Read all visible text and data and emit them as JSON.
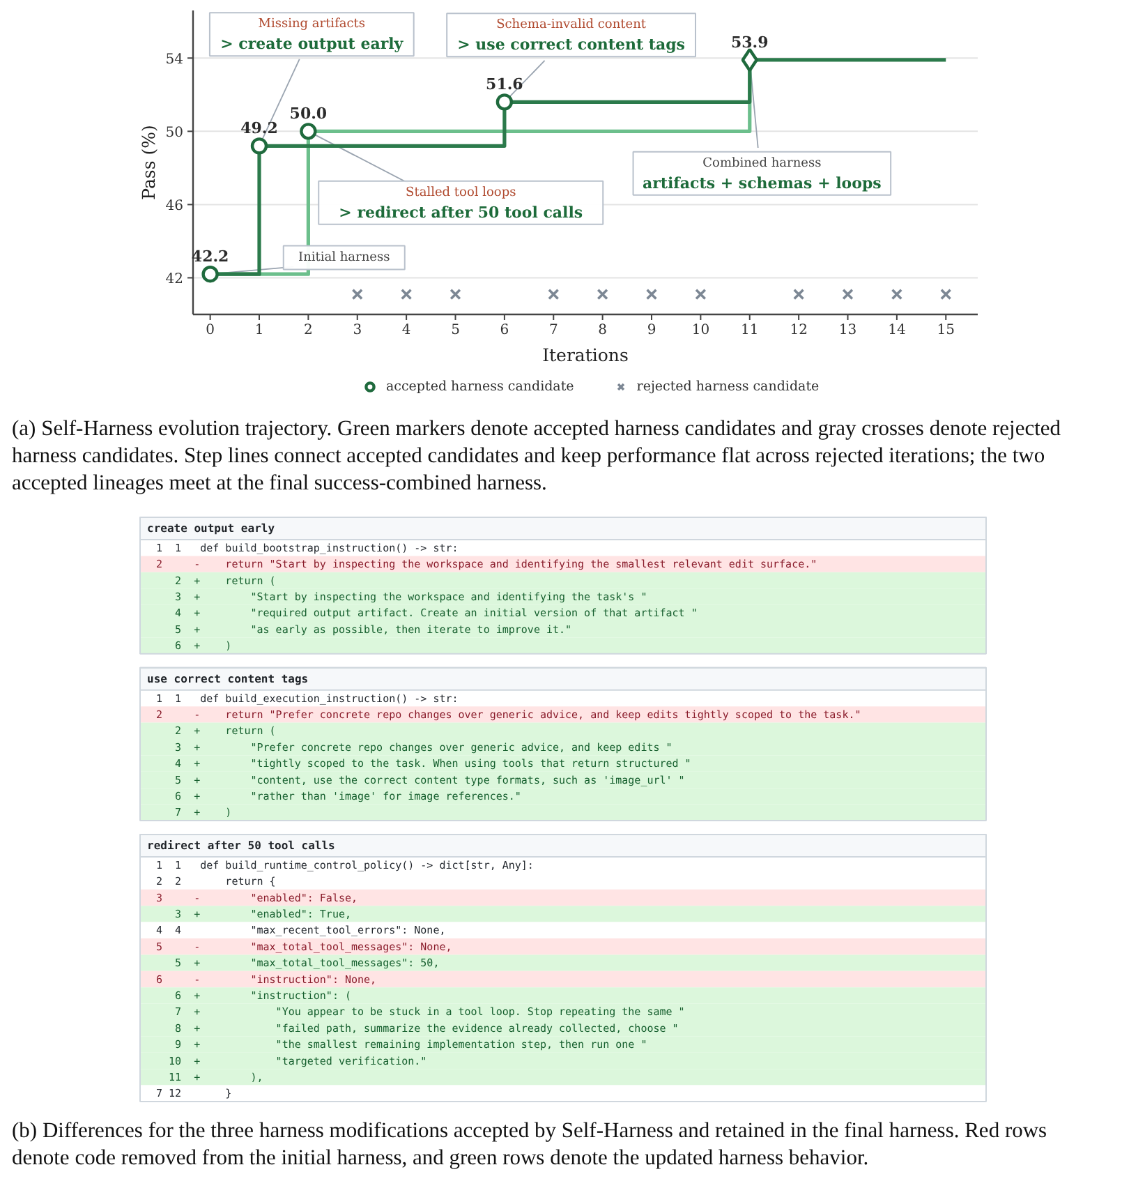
{
  "chart_data": [
    {
      "type": "step",
      "xlabel": "Iterations",
      "ylabel": "Pass (%)",
      "xlim": [
        -0.35,
        15.65
      ],
      "ylim": [
        40,
        56.6
      ],
      "xticks": [
        0,
        1,
        2,
        3,
        4,
        5,
        6,
        7,
        8,
        9,
        10,
        11,
        12,
        13,
        14,
        15
      ],
      "yticks": [
        42,
        46,
        50,
        54
      ],
      "grid": "y",
      "legend": "bottom",
      "series": [
        {
          "type": "step",
          "color": "#6cbf8c",
          "x": [
            0,
            2,
            11
          ],
          "values": [
            42.2,
            50.0,
            53.9
          ],
          "marker": "none"
        },
        {
          "type": "step",
          "color": "#2b7a4b",
          "x": [
            0,
            1,
            6,
            11,
            15
          ],
          "values": [
            42.2,
            49.2,
            51.6,
            53.9,
            53.9
          ],
          "marker": "none"
        },
        {
          "type": "scatter",
          "name": "accepted harness candidate",
          "color": "#1f6a3d",
          "x": [
            0,
            1,
            2,
            6
          ],
          "values": [
            42.2,
            49.2,
            50.0,
            51.6
          ],
          "marker": "circle",
          "value_labels": [
            "42.2",
            "49.2",
            "50.0",
            "51.6"
          ]
        },
        {
          "type": "scatter",
          "color": "#1f6a3d",
          "x": [
            11
          ],
          "values": [
            53.9
          ],
          "marker": "diamond",
          "value_labels": [
            "53.9"
          ]
        },
        {
          "type": "scatter",
          "name": "rejected harness candidate",
          "color": "#7c8794",
          "x": [
            3,
            4,
            5,
            7,
            8,
            9,
            10,
            12,
            13,
            14,
            15
          ],
          "values": [
            41.1,
            41.1,
            41.1,
            41.1,
            41.1,
            41.1,
            41.1,
            41.1,
            41.1,
            41.1,
            41.1
          ],
          "marker": "cross"
        }
      ],
      "annotations": [
        {
          "text": "Missing artifacts\n> create output early",
          "x": 1,
          "y": 49.2
        },
        {
          "text": "Schema-invalid content\n> use correct content tags",
          "x": 6,
          "y": 51.6
        },
        {
          "text": "Stalled tool loops\n> redirect after 50 tool calls",
          "x": 2,
          "y": 50.0
        },
        {
          "text": "Combined harness\nartifacts + schemas + loops",
          "x": 11,
          "y": 53.9
        },
        {
          "text": "Initial harness",
          "x": 0,
          "y": 42.2
        },
        "(a) Self-Harness evolution trajectory. Green markers denote accepted harness candidates and gray crosses denote rejected harness candidates. Step lines connect accepted candidates and keep performance flat across rejected iterations; the two accepted lineages meet at the final success-combined harness."
      ]
    },
    {
      "type": "other",
      "title": "create output early",
      "colors": [
        "#ffffff",
        "#ffe4e4",
        "#dcf7dc",
        "#dcf7dc",
        "#dcf7dc",
        "#dcf7dc",
        "#dcf7dc"
      ],
      "annotations": [
        " 1  1   def build_bootstrap_instruction() -> str:",
        " 2     -    return \"Start by inspecting the workspace and identifying the smallest relevant edit surface.\"",
        "    2  +    return (",
        "    3  +        \"Start by inspecting the workspace and identifying the task's \"",
        "    4  +        \"required output artifact. Create an initial version of that artifact \"",
        "    5  +        \"as early as possible, then iterate to improve it.\"",
        "    6  +    )"
      ]
    },
    {
      "type": "other",
      "title": "use correct content tags",
      "colors": [
        "#ffffff",
        "#ffe4e4",
        "#dcf7dc",
        "#dcf7dc",
        "#dcf7dc",
        "#dcf7dc",
        "#dcf7dc",
        "#dcf7dc"
      ],
      "annotations": [
        " 1  1   def build_execution_instruction() -> str:",
        " 2     -    return \"Prefer concrete repo changes over generic advice, and keep edits tightly scoped to the task.\"",
        "    2  +    return (",
        "    3  +        \"Prefer concrete repo changes over generic advice, and keep edits \"",
        "    4  +        \"tightly scoped to the task. When using tools that return structured \"",
        "    5  +        \"content, use the correct content type formats, such as 'image_url' \"",
        "    6  +        \"rather than 'image' for image references.\"",
        "    7  +    )"
      ]
    },
    {
      "type": "other",
      "title": "redirect after 50 tool calls",
      "colors": [
        "#ffffff",
        "#ffffff",
        "#ffe4e4",
        "#dcf7dc",
        "#ffffff",
        "#ffe4e4",
        "#dcf7dc",
        "#ffe4e4",
        "#dcf7dc",
        "#dcf7dc",
        "#dcf7dc",
        "#dcf7dc",
        "#dcf7dc",
        "#dcf7dc",
        "#ffffff"
      ],
      "annotations": [
        " 1  1   def build_runtime_control_policy() -> dict[str, Any]:",
        " 2  2       return {",
        " 3     -        \"enabled\": False,",
        "    3  +        \"enabled\": True,",
        " 4  4           \"max_recent_tool_errors\": None,",
        " 5     -        \"max_total_tool_messages\": None,",
        "    5  +        \"max_total_tool_messages\": 50,",
        " 6     -        \"instruction\": None,",
        "    6  +        \"instruction\": (",
        "    7  +            \"You appear to be stuck in a tool loop. Stop repeating the same \"",
        "    8  +            \"failed path, summarize the evidence already collected, choose \"",
        "    9  +            \"the smallest remaining implementation step, then run one \"",
        "   10  +            \"targeted verification.\"",
        "   11  +        ),",
        " 7 12       }"
      ]
    },
    {
      "type": "other",
      "annotations": [
        "(b) Differences for the three harness modifications accepted by Self-Harness and retained in the final harness. Red rows denote code removed from the initial harness, and green rows denote the updated harness behavior."
      ]
    }
  ]
}
